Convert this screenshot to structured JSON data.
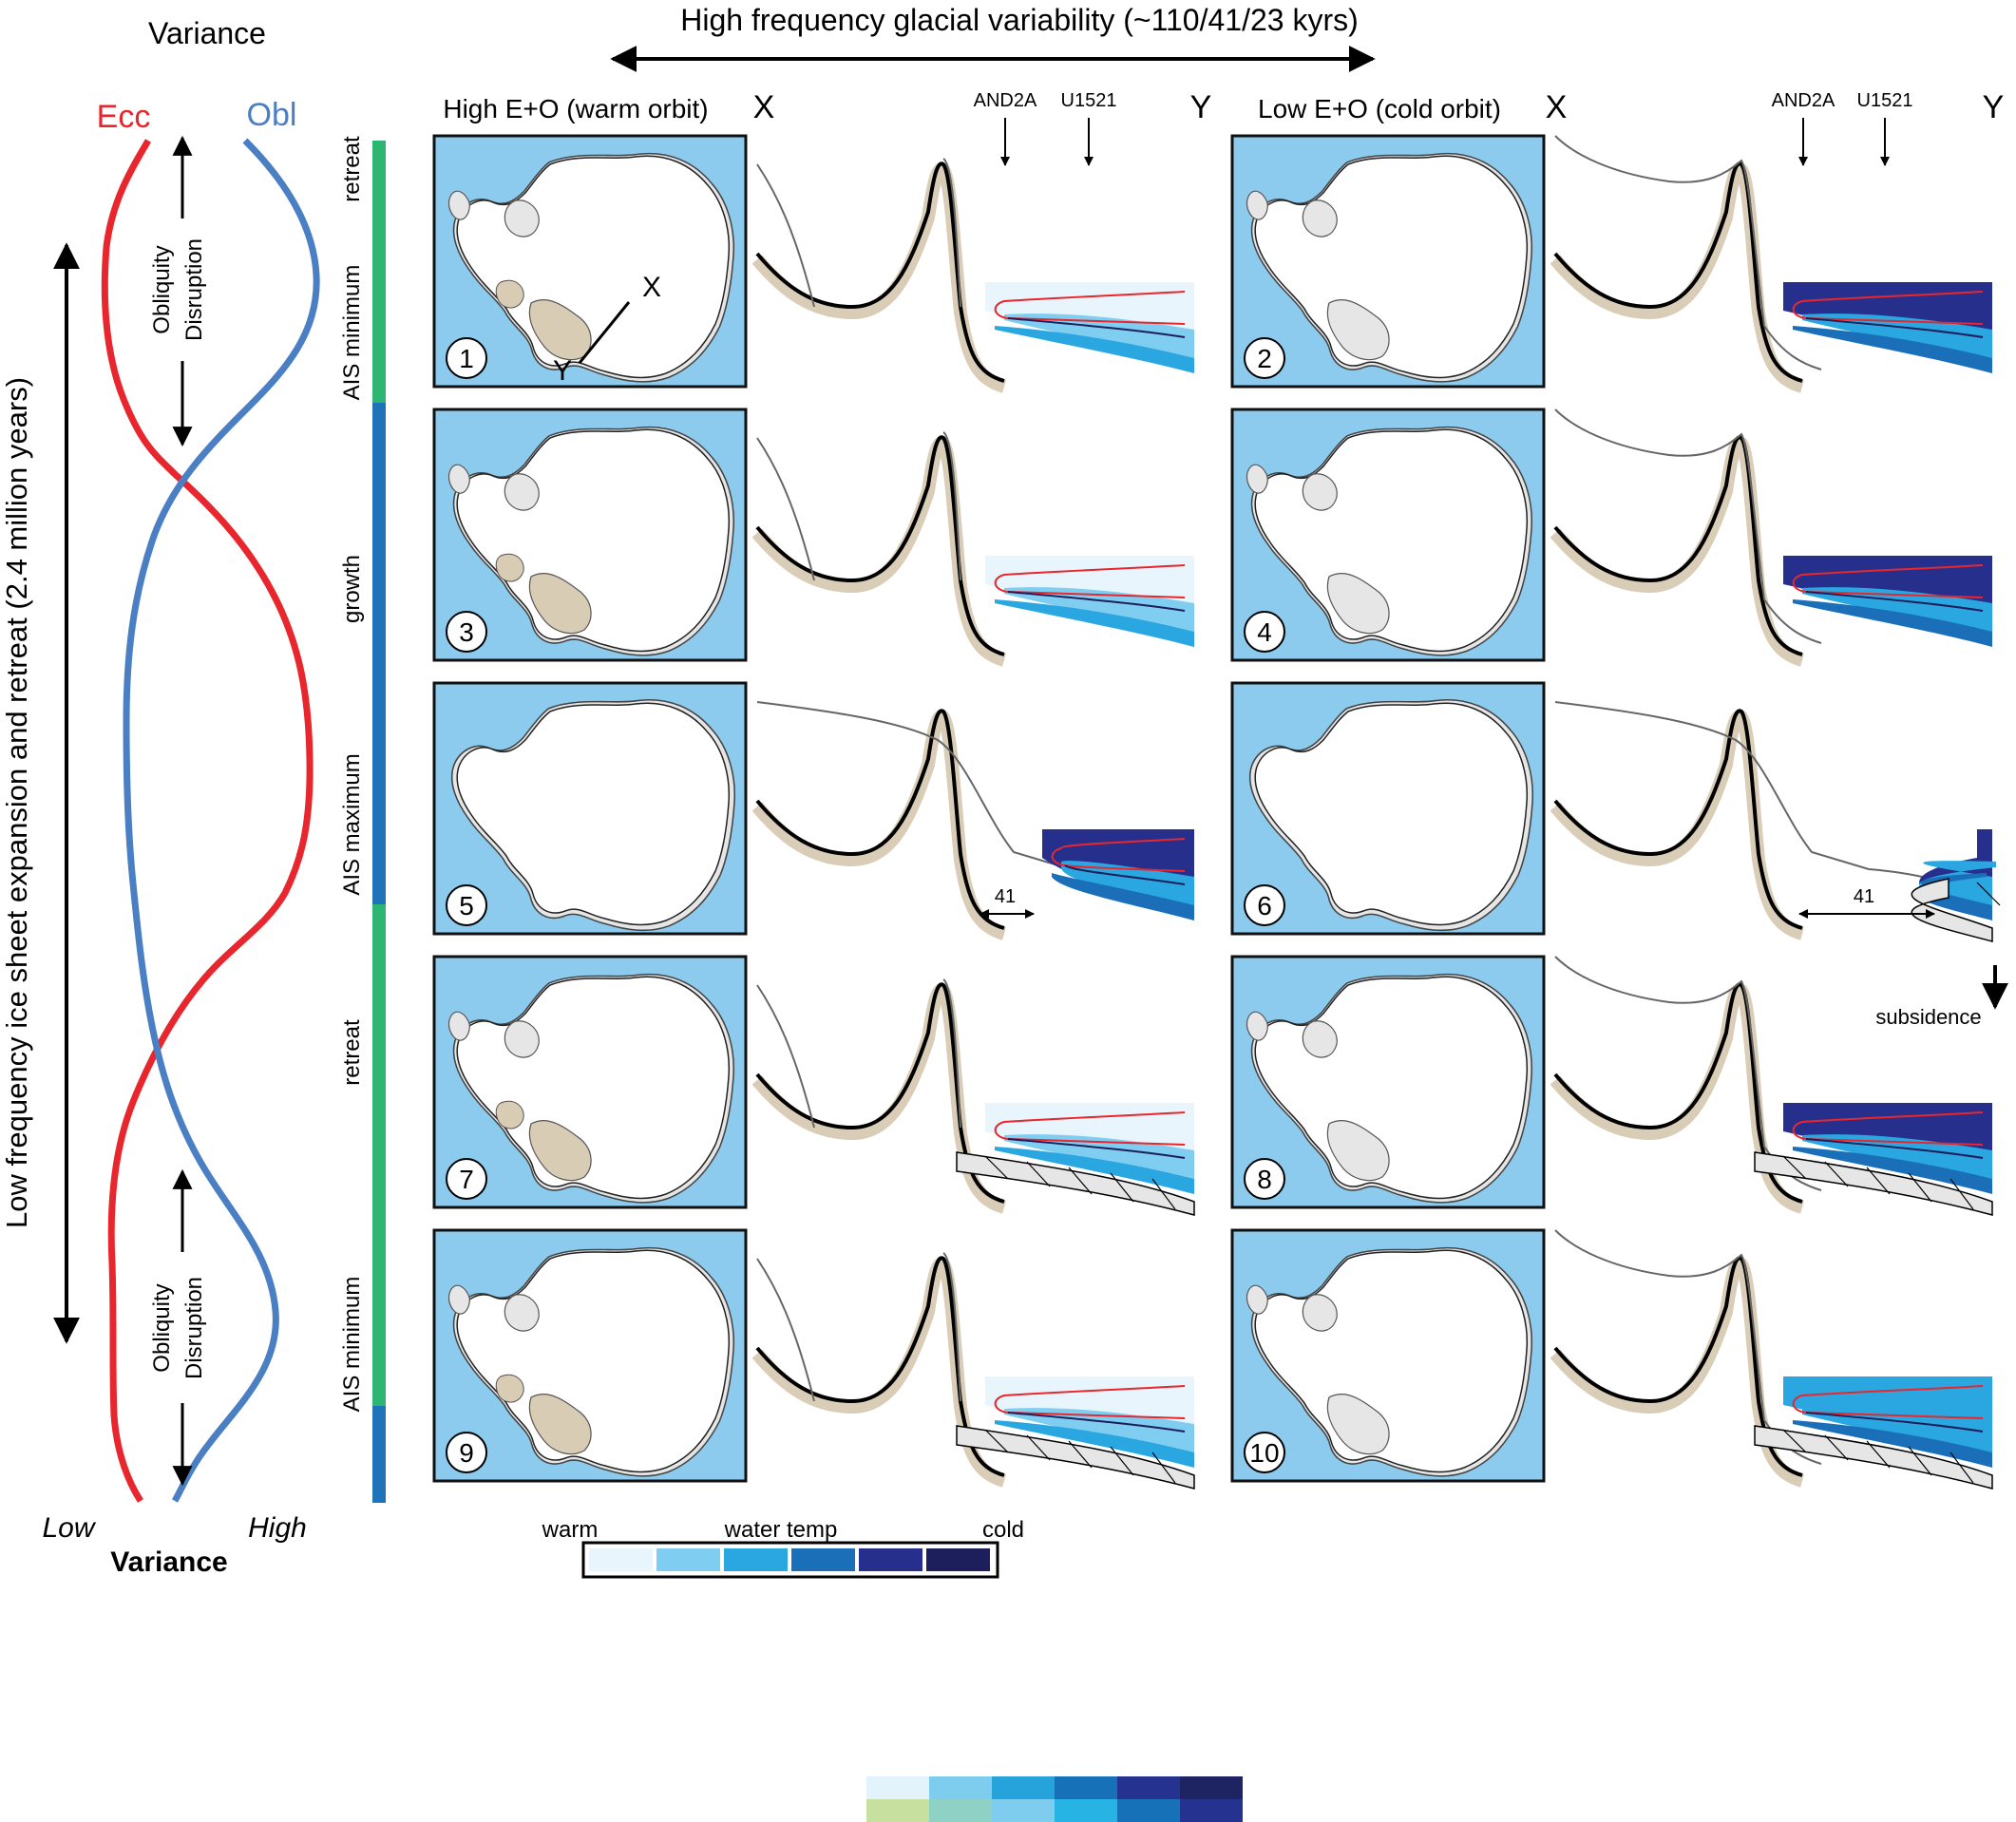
{
  "header": {
    "high_freq_label": "High frequency glacial variability (~110/41/23 kyrs)"
  },
  "variance_panel": {
    "title": "Variance",
    "ecc_label": "Ecc",
    "obl_label": "Obl",
    "low_label": "Low",
    "high_label": "High",
    "axis_label": "Variance",
    "obliquity_disruption_line1": "Obliquity",
    "obliquity_disruption_line2": "Disruption",
    "low_freq_label": "Low frequency ice sheet expansion and retreat (2.4 million years)",
    "ecc_color": "#e8262d",
    "obl_color": "#4a7fc4"
  },
  "phase_bar": {
    "labels": [
      "retreat",
      "growth",
      "AIS maximum",
      "retreat",
      "AIS minimum",
      "AIS minimum"
    ],
    "retreat_color": "#2db572",
    "growth_color": "#1f73b8"
  },
  "columns": [
    {
      "title": "High E+O (warm orbit)",
      "x_label": "X",
      "y_label": "Y",
      "site1": "AND2A",
      "site2": "U1521"
    },
    {
      "title": "Low E+O (cold orbit)",
      "x_label": "X",
      "y_label": "Y",
      "site1": "AND2A",
      "site2": "U1521"
    }
  ],
  "panels": [
    "1",
    "2",
    "3",
    "4",
    "5",
    "6",
    "7",
    "8",
    "9",
    "10"
  ],
  "section_line": {
    "x": "X",
    "y": "Y"
  },
  "annotations": {
    "dist_5": "41",
    "dist_6": "41",
    "subsidence": "subsidence"
  },
  "legend": {
    "warm": "warm",
    "water_temp": "water temp",
    "cold": "cold",
    "colors": [
      "#e8f5fc",
      "#7fcdf0",
      "#2aa7e0",
      "#1a6fb8",
      "#262f8c",
      "#1c1f5c"
    ]
  },
  "swatches": {
    "row1": [
      "#e3f3fb",
      "#7ecdee",
      "#27a3dc",
      "#1771b9",
      "#263290",
      "#1e2362"
    ],
    "row2": [
      "#c7df9f",
      "#8fd1c5",
      "#7fcdee",
      "#27b4e4",
      "#1771b9",
      "#263290"
    ]
  },
  "palette": {
    "ocean": "#8ccbee",
    "ice": "#ffffff",
    "shelf": "#e6e6e6",
    "rock": "#d8ccb4",
    "sediment": "#d9cdb8"
  }
}
